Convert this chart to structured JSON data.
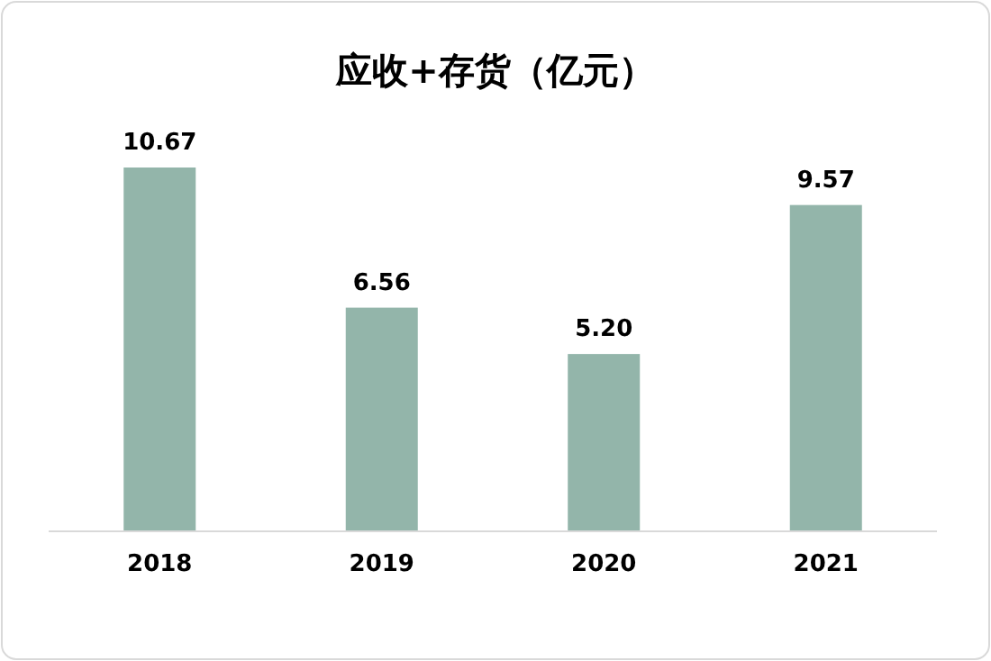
{
  "chart_data": {
    "type": "bar",
    "title": "应收+存货（亿元）",
    "categories": [
      "2018",
      "2019",
      "2020",
      "2021"
    ],
    "values": [
      10.67,
      6.56,
      5.2,
      9.57
    ],
    "value_labels": [
      "10.67",
      "6.56",
      "5.20",
      "9.57"
    ],
    "color": "#93b5aa"
  }
}
